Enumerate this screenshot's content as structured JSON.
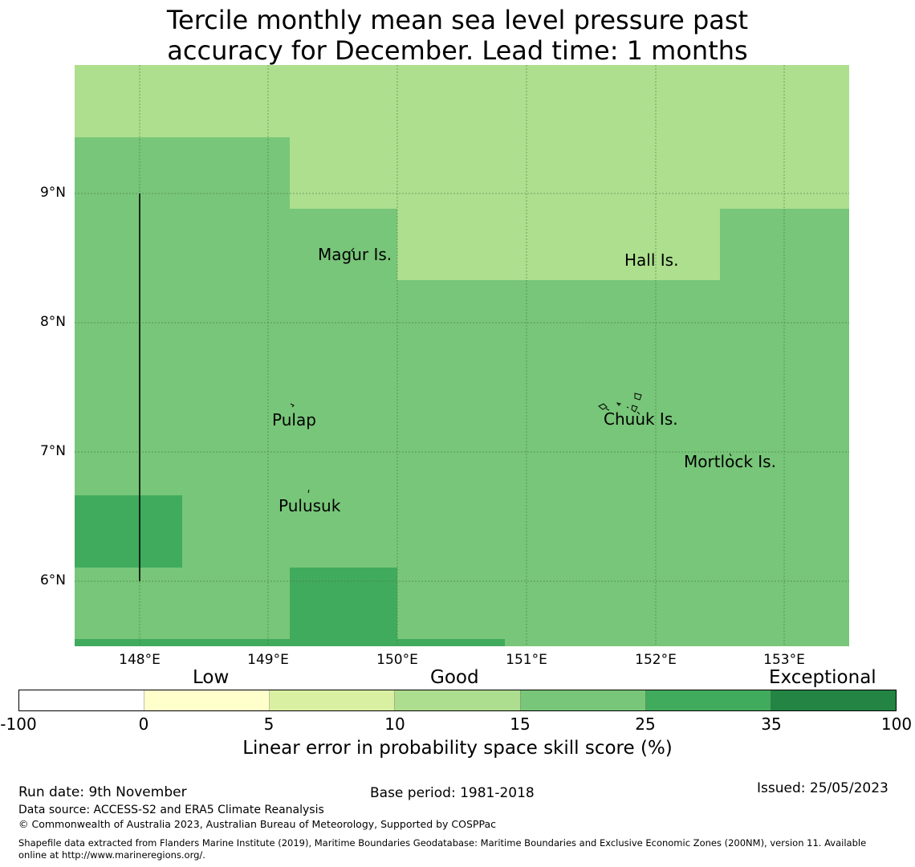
{
  "title": {
    "line1": "Tercile monthly mean sea level pressure past",
    "line2": "accuracy for December. Lead time: 1 months"
  },
  "map": {
    "lat_labels": [
      "9°N",
      "8°N",
      "7°N",
      "6°N"
    ],
    "lon_labels": [
      "148°E",
      "149°E",
      "150°E",
      "151°E",
      "152°E",
      "153°E"
    ],
    "places": {
      "magur": "Magur Is.",
      "hall": "Hall Is.",
      "pulap": "Pulap",
      "chuuk": "Chuuk Is.",
      "mortlock": "Mortlock Is.",
      "pulusuk": "Pulusuk"
    },
    "category_colors": {
      "10_15": "#addf8e",
      "15_25": "#78c679",
      "25_35": "#41ab5d",
      "35_100": "#238443"
    }
  },
  "colorbar": {
    "categories": {
      "low": "Low",
      "good": "Good",
      "exceptional": "Exceptional"
    },
    "ticks": [
      "-100",
      "0",
      "5",
      "10",
      "15",
      "25",
      "35",
      "100"
    ],
    "colors": [
      "#ffffff",
      "#ffffcc",
      "#d9f0a3",
      "#addd8e",
      "#78c679",
      "#41ab5d",
      "#238443"
    ],
    "label": "Linear error in probability space skill score (%)"
  },
  "footer": {
    "run_date": "Run date: 9th November",
    "base_period": "Base period: 1981-2018",
    "issued": "Issued: 25/05/2023",
    "data_source": "Data source: ACCESS-S2 and ERA5 Climate Reanalysis",
    "copyright": "© Commonwealth of Australia 2023, Australian Bureau of Meteorology, Supported by COSPPac",
    "shapefile_line1": "Shapefile data extracted from Flanders Marine Institute (2019), Maritime Boundaries Geodatabase: Maritime Boundaries and Exclusive Economic Zones (200NM), version 11. Available",
    "shapefile_line2": "online at http://www.marineregions.org/."
  }
}
